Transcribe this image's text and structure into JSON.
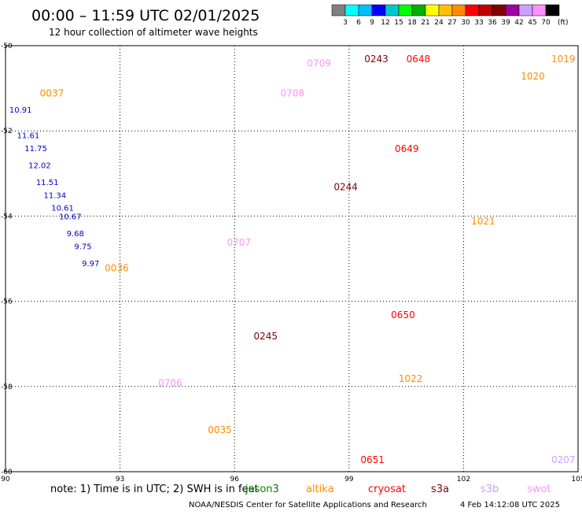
{
  "header": {
    "title": "00:00 – 11:59 UTC 02/01/2025",
    "subtitle": "12 hour collection of altimeter wave heights"
  },
  "colorbar": {
    "labels": [
      "3",
      "6",
      "9",
      "12",
      "15",
      "18",
      "21",
      "24",
      "27",
      "30",
      "33",
      "36",
      "39",
      "42",
      "45",
      "70"
    ],
    "unit": "(ft)",
    "colors": [
      "#808080",
      "#00ffff",
      "#00bfff",
      "#0000ff",
      "#00c8c8",
      "#00ff00",
      "#00b000",
      "#ffff00",
      "#ffc000",
      "#ff8c00",
      "#ff0000",
      "#c00000",
      "#800000",
      "#a000a0",
      "#c8a0ff",
      "#ff90ff",
      "#000000"
    ]
  },
  "footer": {
    "note": "note:  1) Time is in UTC; 2) SWH is in feet",
    "credit": "NOAA/NESDIS Center for Satellite Applications and Research",
    "timestamp": "4 Feb 14:12:08 UTC 2025"
  },
  "legend": [
    {
      "name": "jason3",
      "color": "#008000"
    },
    {
      "name": "altika",
      "color": "#ff8c00"
    },
    {
      "name": "cryosat",
      "color": "#ff0000"
    },
    {
      "name": "s3a",
      "color": "#800000"
    },
    {
      "name": "s3b",
      "color": "#c8a0ff"
    },
    {
      "name": "swot",
      "color": "#ff90ff"
    }
  ],
  "chart_data": {
    "type": "scatter",
    "title": "00:00 – 11:59 UTC 02/01/2025",
    "subtitle": "12 hour collection of altimeter wave heights",
    "xlabel": "",
    "ylabel": "",
    "xlim": [
      90,
      105
    ],
    "ylim": [
      -60,
      -50
    ],
    "x_ticks": [
      90,
      93,
      96,
      99,
      102,
      105
    ],
    "y_ticks": [
      -50,
      -52,
      -54,
      -56,
      -58,
      -60
    ],
    "x_tick_labels": [
      "90",
      "93",
      "96",
      "99",
      "102",
      "105"
    ],
    "y_tick_labels": [
      "-50",
      "-52",
      "-54",
      "-56",
      "-58",
      "-60"
    ],
    "grid": true,
    "series": [
      {
        "name": "",
        "color": "#0000cc",
        "points": [
          {
            "x": 90.1,
            "y": -51.5,
            "label": "10.91"
          },
          {
            "x": 90.3,
            "y": -52.1,
            "label": "11.61"
          },
          {
            "x": 90.5,
            "y": -52.4,
            "label": "11.75"
          },
          {
            "x": 90.6,
            "y": -52.8,
            "label": "12.02"
          },
          {
            "x": 90.8,
            "y": -53.2,
            "label": "11.51"
          },
          {
            "x": 91.0,
            "y": -53.5,
            "label": "11.34"
          },
          {
            "x": 91.2,
            "y": -53.8,
            "label": "10.61"
          },
          {
            "x": 91.4,
            "y": -54.0,
            "label": "10.67"
          },
          {
            "x": 91.6,
            "y": -54.4,
            "label": "9.68"
          },
          {
            "x": 91.8,
            "y": -54.7,
            "label": "9.75"
          },
          {
            "x": 92.0,
            "y": -55.1,
            "label": "9.97"
          }
        ]
      }
    ],
    "time_labels": [
      {
        "x": 90.9,
        "y": -51.1,
        "text": "0037",
        "color": "#ff8c00"
      },
      {
        "x": 92.6,
        "y": -55.2,
        "text": "0036",
        "color": "#ff8c00"
      },
      {
        "x": 94.0,
        "y": -57.9,
        "text": "0706",
        "color": "#ff90ff"
      },
      {
        "x": 95.3,
        "y": -59.0,
        "text": "0035",
        "color": "#ff8c00"
      },
      {
        "x": 95.8,
        "y": -54.6,
        "text": "0707",
        "color": "#ff90ff"
      },
      {
        "x": 96.5,
        "y": -56.8,
        "text": "0245",
        "color": "#800000"
      },
      {
        "x": 97.2,
        "y": -51.1,
        "text": "0708",
        "color": "#ff90ff"
      },
      {
        "x": 97.9,
        "y": -50.4,
        "text": "0709",
        "color": "#ff90ff"
      },
      {
        "x": 98.6,
        "y": -53.3,
        "text": "0244",
        "color": "#800000"
      },
      {
        "x": 99.4,
        "y": -50.3,
        "text": "0243",
        "color": "#800000"
      },
      {
        "x": 100.5,
        "y": -50.3,
        "text": "0648",
        "color": "#ff0000"
      },
      {
        "x": 100.2,
        "y": -52.4,
        "text": "0649",
        "color": "#ff0000"
      },
      {
        "x": 100.1,
        "y": -56.3,
        "text": "0650",
        "color": "#ff0000"
      },
      {
        "x": 100.3,
        "y": -57.8,
        "text": "1022",
        "color": "#ff8c00"
      },
      {
        "x": 99.3,
        "y": -59.7,
        "text": "0651",
        "color": "#ff0000"
      },
      {
        "x": 102.2,
        "y": -54.1,
        "text": "1021",
        "color": "#ff8c00"
      },
      {
        "x": 103.5,
        "y": -50.7,
        "text": "1020",
        "color": "#ff8c00"
      },
      {
        "x": 104.3,
        "y": -50.3,
        "text": "1019",
        "color": "#ff8c00"
      },
      {
        "x": 104.3,
        "y": -59.7,
        "text": "0207",
        "color": "#c8a0ff"
      }
    ]
  }
}
